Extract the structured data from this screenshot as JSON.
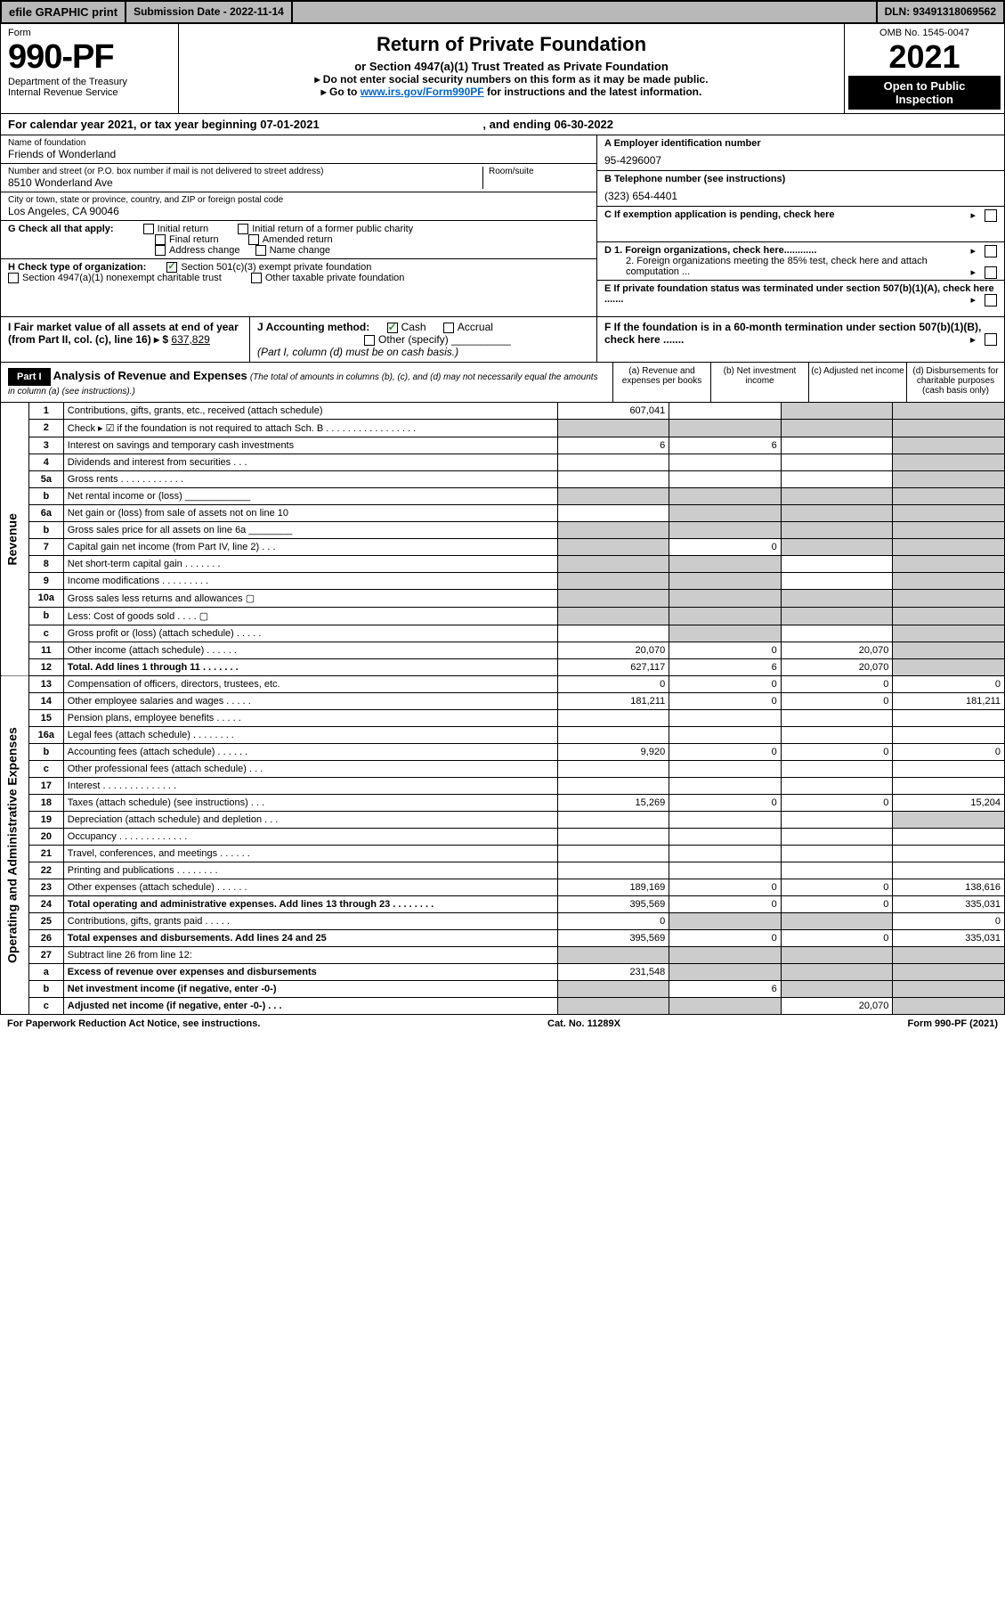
{
  "topbar": {
    "efile": "efile GRAPHIC print",
    "submission_label": "Submission Date - 2022-11-14",
    "dln": "DLN: 93491318069562"
  },
  "header": {
    "form_label": "Form",
    "form_number": "990-PF",
    "dept": "Department of the Treasury",
    "irs": "Internal Revenue Service",
    "title": "Return of Private Foundation",
    "subtitle": "or Section 4947(a)(1) Trust Treated as Private Foundation",
    "instr1": "▸ Do not enter social security numbers on this form as it may be made public.",
    "instr2_prefix": "▸ Go to ",
    "instr2_link": "www.irs.gov/Form990PF",
    "instr2_suffix": " for instructions and the latest information.",
    "omb": "OMB No. 1545-0047",
    "year": "2021",
    "open": "Open to Public",
    "inspection": "Inspection"
  },
  "calyear": {
    "text": "For calendar year 2021, or tax year beginning 07-01-2021",
    "ending": ", and ending 06-30-2022"
  },
  "name_block": {
    "label": "Name of foundation",
    "value": "Friends of Wonderland"
  },
  "address_block": {
    "label": "Number and street (or P.O. box number if mail is not delivered to street address)",
    "room": "Room/suite",
    "value": "8510 Wonderland Ave"
  },
  "city_block": {
    "label": "City or town, state or province, country, and ZIP or foreign postal code",
    "value": "Los Angeles, CA  90046"
  },
  "ein": {
    "label": "A Employer identification number",
    "value": "95-4296007"
  },
  "phone": {
    "label": "B Telephone number (see instructions)",
    "value": "(323) 654-4401"
  },
  "c_text": "C If exemption application is pending, check here",
  "d1": "D 1. Foreign organizations, check here............",
  "d2": "2. Foreign organizations meeting the 85% test, check here and attach computation ...",
  "e_text": "E  If private foundation status was terminated under section 507(b)(1)(A), check here .......",
  "f_text": "F  If the foundation is in a 60-month termination under section 507(b)(1)(B), check here .......",
  "g": {
    "label": "G Check all that apply:",
    "opts": [
      "Initial return",
      "Initial return of a former public charity",
      "Final return",
      "Amended return",
      "Address change",
      "Name change"
    ]
  },
  "h": {
    "label": "H Check type of organization:",
    "opt1": "Section 501(c)(3) exempt private foundation",
    "opt2": "Section 4947(a)(1) nonexempt charitable trust",
    "opt3": "Other taxable private foundation"
  },
  "i": {
    "label": "I Fair market value of all assets at end of year (from Part II, col. (c), line 16) ▸ $",
    "value": "637,829"
  },
  "j": {
    "label": "J Accounting method:",
    "cash": "Cash",
    "accrual": "Accrual",
    "other": "Other (specify)",
    "note": "(Part I, column (d) must be on cash basis.)"
  },
  "part1": {
    "hdr": "Part I",
    "title": "Analysis of Revenue and Expenses",
    "note": "(The total of amounts in columns (b), (c), and (d) may not necessarily equal the amounts in column (a) (see instructions).)",
    "col_a": "(a)   Revenue and expenses per books",
    "col_b": "(b)   Net investment income",
    "col_c": "(c)   Adjusted net income",
    "col_d": "(d)   Disbursements for charitable purposes (cash basis only)"
  },
  "sidelabels": {
    "revenue": "Revenue",
    "opex": "Operating and Administrative Expenses"
  },
  "lines": [
    {
      "n": "1",
      "lbl": "Contributions, gifts, grants, etc., received (attach schedule)",
      "a": "607,041",
      "b": "",
      "c": "",
      "d": "",
      "greyB": false,
      "greyC": true,
      "greyD": true
    },
    {
      "n": "2",
      "lbl": "Check ▸ ☑ if the foundation is not required to attach Sch. B  . . . . . . . . . . . . . . . . .",
      "a": "",
      "b": "",
      "c": "",
      "d": "",
      "greyA": true,
      "greyB": true,
      "greyC": true,
      "greyD": true,
      "bold": false
    },
    {
      "n": "3",
      "lbl": "Interest on savings and temporary cash investments",
      "a": "6",
      "b": "6",
      "c": "",
      "d": "",
      "greyD": true
    },
    {
      "n": "4",
      "lbl": "Dividends and interest from securities   .  .  .",
      "a": "",
      "b": "",
      "c": "",
      "d": "",
      "greyD": true
    },
    {
      "n": "5a",
      "lbl": "Gross rents   .  .  .  .  .  .  .  .  .  .  .  .",
      "a": "",
      "b": "",
      "c": "",
      "d": "",
      "greyD": true
    },
    {
      "n": "b",
      "lbl": "Net rental income or (loss)  ____________",
      "a": "",
      "b": "",
      "c": "",
      "d": "",
      "greyA": true,
      "greyB": true,
      "greyC": true,
      "greyD": true
    },
    {
      "n": "6a",
      "lbl": "Net gain or (loss) from sale of assets not on line 10",
      "a": "",
      "b": "",
      "c": "",
      "d": "",
      "greyB": true,
      "greyC": true,
      "greyD": true
    },
    {
      "n": "b",
      "lbl": "Gross sales price for all assets on line 6a ________",
      "a": "",
      "b": "",
      "c": "",
      "d": "",
      "greyA": true,
      "greyB": true,
      "greyC": true,
      "greyD": true
    },
    {
      "n": "7",
      "lbl": "Capital gain net income (from Part IV, line 2)  .  .  .",
      "a": "",
      "b": "0",
      "c": "",
      "d": "",
      "greyA": true,
      "greyC": true,
      "greyD": true
    },
    {
      "n": "8",
      "lbl": "Net short-term capital gain  .  .  .  .  .  .  .",
      "a": "",
      "b": "",
      "c": "",
      "d": "",
      "greyA": true,
      "greyB": true,
      "greyD": true
    },
    {
      "n": "9",
      "lbl": "Income modifications  .  .  .  .  .  .  .  .  .",
      "a": "",
      "b": "",
      "c": "",
      "d": "",
      "greyA": true,
      "greyB": true,
      "greyD": true
    },
    {
      "n": "10a",
      "lbl": "Gross sales less returns and allowances   ▢",
      "a": "",
      "b": "",
      "c": "",
      "d": "",
      "greyA": true,
      "greyB": true,
      "greyC": true,
      "greyD": true
    },
    {
      "n": "b",
      "lbl": "Less: Cost of goods sold   .  .  .  .  ▢",
      "a": "",
      "b": "",
      "c": "",
      "d": "",
      "greyA": true,
      "greyB": true,
      "greyC": true,
      "greyD": true
    },
    {
      "n": "c",
      "lbl": "Gross profit or (loss) (attach schedule)   .  .  .  .  .",
      "a": "",
      "b": "",
      "c": "",
      "d": "",
      "greyB": true,
      "greyD": true
    },
    {
      "n": "11",
      "lbl": "Other income (attach schedule)   .  .  .  .  .  .",
      "a": "20,070",
      "b": "0",
      "c": "20,070",
      "d": "",
      "greyD": true
    },
    {
      "n": "12",
      "lbl": "Total. Add lines 1 through 11   .  .  .  .  .  .  .",
      "a": "627,117",
      "b": "6",
      "c": "20,070",
      "d": "",
      "bold": true,
      "greyD": true
    },
    {
      "n": "13",
      "lbl": "Compensation of officers, directors, trustees, etc.",
      "a": "0",
      "b": "0",
      "c": "0",
      "d": "0"
    },
    {
      "n": "14",
      "lbl": "Other employee salaries and wages   .  .  .  .  .",
      "a": "181,211",
      "b": "0",
      "c": "0",
      "d": "181,211"
    },
    {
      "n": "15",
      "lbl": "Pension plans, employee benefits  .  .  .  .  .",
      "a": "",
      "b": "",
      "c": "",
      "d": ""
    },
    {
      "n": "16a",
      "lbl": "Legal fees (attach schedule)  .  .  .  .  .  .  .  .",
      "a": "",
      "b": "",
      "c": "",
      "d": ""
    },
    {
      "n": "b",
      "lbl": "Accounting fees (attach schedule)  .  .  .  .  .  .",
      "a": "9,920",
      "b": "0",
      "c": "0",
      "d": "0"
    },
    {
      "n": "c",
      "lbl": "Other professional fees (attach schedule)   .  .  .",
      "a": "",
      "b": "",
      "c": "",
      "d": ""
    },
    {
      "n": "17",
      "lbl": "Interest  .  .  .  .  .  .  .  .  .  .  .  .  .  .",
      "a": "",
      "b": "",
      "c": "",
      "d": ""
    },
    {
      "n": "18",
      "lbl": "Taxes (attach schedule) (see instructions)   .  .  .",
      "a": "15,269",
      "b": "0",
      "c": "0",
      "d": "15,204"
    },
    {
      "n": "19",
      "lbl": "Depreciation (attach schedule) and depletion   .  .  .",
      "a": "",
      "b": "",
      "c": "",
      "d": "",
      "greyD": true
    },
    {
      "n": "20",
      "lbl": "Occupancy  .  .  .  .  .  .  .  .  .  .  .  .  .",
      "a": "",
      "b": "",
      "c": "",
      "d": ""
    },
    {
      "n": "21",
      "lbl": "Travel, conferences, and meetings  .  .  .  .  .  .",
      "a": "",
      "b": "",
      "c": "",
      "d": ""
    },
    {
      "n": "22",
      "lbl": "Printing and publications  .  .  .  .  .  .  .  .",
      "a": "",
      "b": "",
      "c": "",
      "d": ""
    },
    {
      "n": "23",
      "lbl": "Other expenses (attach schedule)  .  .  .  .  .  .",
      "a": "189,169",
      "b": "0",
      "c": "0",
      "d": "138,616"
    },
    {
      "n": "24",
      "lbl": "Total operating and administrative expenses. Add lines 13 through 23   .  .  .  .  .  .  .  .",
      "a": "395,569",
      "b": "0",
      "c": "0",
      "d": "335,031",
      "bold": true
    },
    {
      "n": "25",
      "lbl": "Contributions, gifts, grants paid   .  .  .  .  .",
      "a": "0",
      "b": "",
      "c": "",
      "d": "0",
      "greyB": true,
      "greyC": true
    },
    {
      "n": "26",
      "lbl": "Total expenses and disbursements. Add lines 24 and 25",
      "a": "395,569",
      "b": "0",
      "c": "0",
      "d": "335,031",
      "bold": true
    },
    {
      "n": "27",
      "lbl": "Subtract line 26 from line 12:",
      "a": "",
      "b": "",
      "c": "",
      "d": "",
      "greyA": true,
      "greyB": true,
      "greyC": true,
      "greyD": true
    },
    {
      "n": "a",
      "lbl": "Excess of revenue over expenses and disbursements",
      "a": "231,548",
      "b": "",
      "c": "",
      "d": "",
      "bold": true,
      "greyB": true,
      "greyC": true,
      "greyD": true
    },
    {
      "n": "b",
      "lbl": "Net investment income (if negative, enter -0-)",
      "a": "",
      "b": "6",
      "c": "",
      "d": "",
      "bold": true,
      "greyA": true,
      "greyC": true,
      "greyD": true
    },
    {
      "n": "c",
      "lbl": "Adjusted net income (if negative, enter -0-)   .  .  .",
      "a": "",
      "b": "",
      "c": "20,070",
      "d": "",
      "bold": true,
      "greyA": true,
      "greyB": true,
      "greyD": true
    }
  ],
  "footer": {
    "left": "For Paperwork Reduction Act Notice, see instructions.",
    "mid": "Cat. No. 11289X",
    "right": "Form 990-PF (2021)"
  }
}
